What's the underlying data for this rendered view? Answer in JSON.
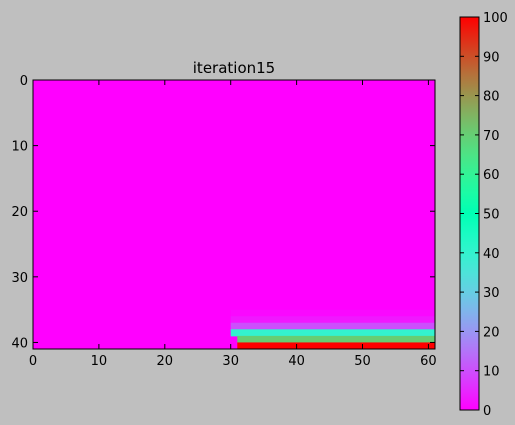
{
  "chart_data": {
    "type": "heatmap",
    "title": "iteration15",
    "xlabel": "",
    "ylabel": "",
    "x_range": [
      0,
      61
    ],
    "y_range": [
      0,
      41
    ],
    "x_ticks": [
      0,
      10,
      20,
      30,
      40,
      50,
      60
    ],
    "y_ticks": [
      0,
      10,
      20,
      30,
      40
    ],
    "y_axis_inverted": true,
    "colormap": "rainbow",
    "value_range": [
      0,
      100
    ],
    "colorbar_ticks": [
      0,
      10,
      20,
      30,
      40,
      50,
      60,
      70,
      80,
      90,
      100
    ],
    "background_value": 0,
    "nonzero_rows": [
      {
        "y": 35,
        "x_start": 30,
        "x_end": 60,
        "value": 1
      },
      {
        "y": 36,
        "x_start": 30,
        "x_end": 60,
        "value": 3
      },
      {
        "y": 37,
        "x_start": 30,
        "x_end": 60,
        "value": 10
      },
      {
        "y": 38,
        "x_start": 30,
        "x_end": 60,
        "value": 40
      },
      {
        "y": 39,
        "x_start": 31,
        "x_end": 60,
        "value": 70
      },
      {
        "y": 40,
        "x_start": 31,
        "x_end": 60,
        "value": 100
      }
    ],
    "grid": false
  }
}
